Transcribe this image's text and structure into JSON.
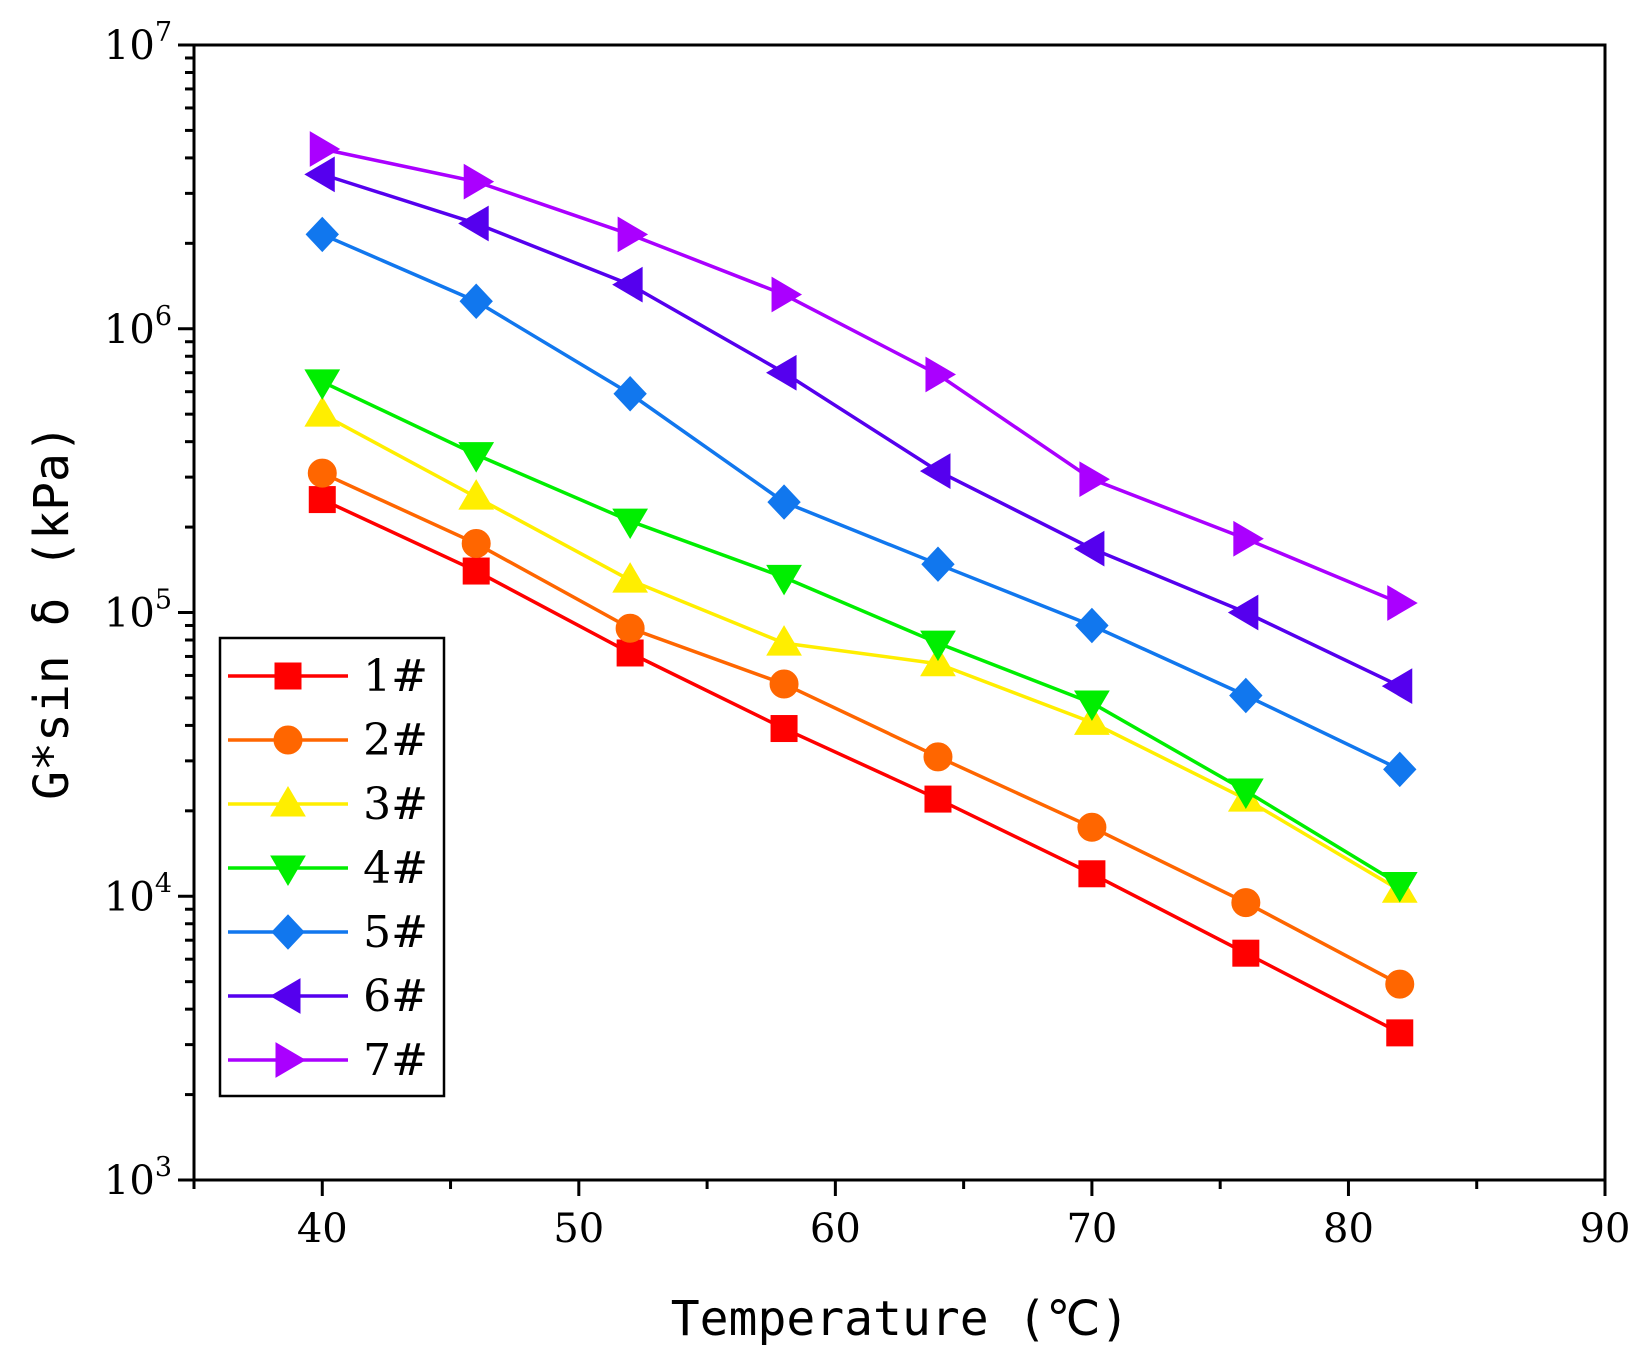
{
  "chart_data": {
    "type": "line",
    "title": "",
    "xlabel": "Temperature (℃)",
    "ylabel": "G*sin δ (kPa)",
    "x": [
      40,
      46,
      52,
      58,
      64,
      70,
      76,
      82
    ],
    "xlim": [
      35,
      90
    ],
    "ylim": [
      1000,
      10000000
    ],
    "yscale": "log",
    "x_ticks": [
      {
        "value": 40,
        "label": "40"
      },
      {
        "value": 50,
        "label": "50"
      },
      {
        "value": 60,
        "label": "60"
      },
      {
        "value": 70,
        "label": "70"
      },
      {
        "value": 80,
        "label": "80"
      },
      {
        "value": 90,
        "label": "90"
      }
    ],
    "y_ticks": [
      {
        "value": 1000,
        "base": "10",
        "exp": "3"
      },
      {
        "value": 10000,
        "base": "10",
        "exp": "4"
      },
      {
        "value": 100000,
        "base": "10",
        "exp": "5"
      },
      {
        "value": 1000000,
        "base": "10",
        "exp": "6"
      },
      {
        "value": 10000000,
        "base": "10",
        "exp": "7"
      }
    ],
    "legend_position": "bottom-left",
    "series": [
      {
        "name": "1#",
        "color": "#ff0000",
        "marker": "square",
        "values": [
          250000,
          140000,
          72000,
          39000,
          22000,
          12000,
          6300,
          3300
        ]
      },
      {
        "name": "2#",
        "color": "#ff6600",
        "marker": "circle",
        "values": [
          310000,
          175000,
          88000,
          56000,
          31000,
          17500,
          9500,
          4900
        ]
      },
      {
        "name": "3#",
        "color": "#ffee00",
        "marker": "triangle-up",
        "values": [
          500000,
          255000,
          130000,
          78000,
          66000,
          41000,
          22000,
          10500
        ]
      },
      {
        "name": "4#",
        "color": "#00ee00",
        "marker": "triangle-down",
        "values": [
          650000,
          360000,
          210000,
          133000,
          78000,
          48000,
          23500,
          11000
        ]
      },
      {
        "name": "5#",
        "color": "#1177ee",
        "marker": "diamond",
        "values": [
          2150000,
          1250000,
          590000,
          245000,
          148000,
          90000,
          51000,
          28000
        ]
      },
      {
        "name": "6#",
        "color": "#5500ee",
        "marker": "triangle-left",
        "values": [
          3500000,
          2350000,
          1430000,
          700000,
          315000,
          168000,
          100000,
          55000
        ]
      },
      {
        "name": "7#",
        "color": "#aa00ff",
        "marker": "triangle-right",
        "values": [
          4300000,
          3300000,
          2150000,
          1320000,
          690000,
          295000,
          182000,
          108000
        ]
      }
    ]
  }
}
